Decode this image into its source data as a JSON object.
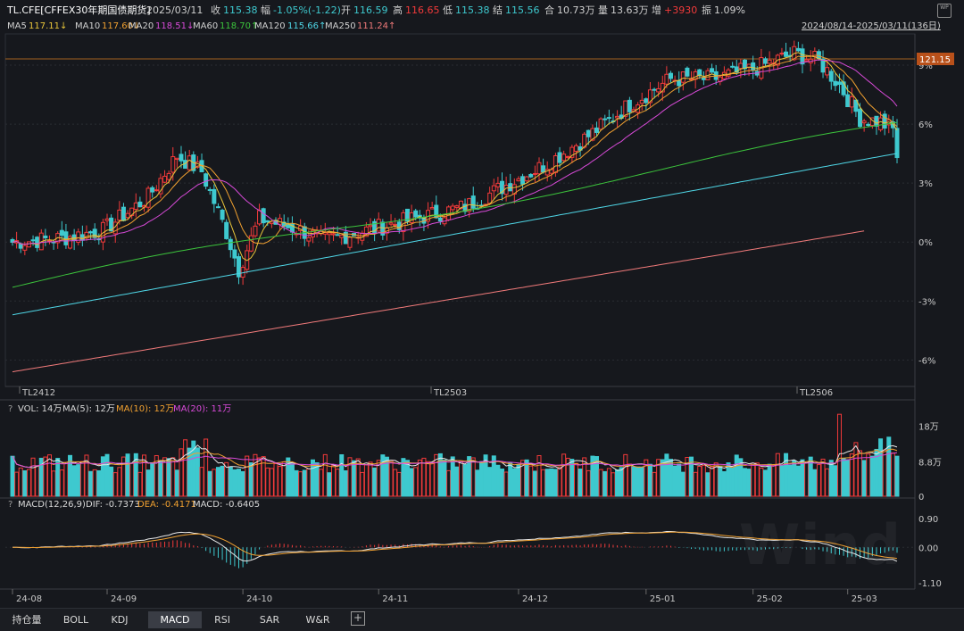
{
  "header": {
    "symbol": "TL.CFE[CFFEX30年期国债期货]",
    "date": "2025/03/11",
    "close_label": "收",
    "close": "115.38",
    "change_label": "幅",
    "change": "-1.05%(-1.22)",
    "open_label": "开",
    "open": "116.59",
    "high_label": "高",
    "high": "116.65",
    "low_label": "低",
    "low": "115.38",
    "settle_label": "结",
    "settle": "115.56",
    "oi_label": "合",
    "oi": "10.73万",
    "vol_label": "量",
    "vol": "13.63万",
    "oi_chg_label": "增",
    "oi_chg": "+3930",
    "amp_label": "振",
    "amp": "1.09%",
    "range": "2024/08/14-2025/03/11(136日)",
    "wp_icon": "WP"
  },
  "ma_legend": [
    {
      "label": "MA5",
      "value": "117.11↓",
      "color": "#e8c53a"
    },
    {
      "label": "MA10",
      "value": "117.60↓",
      "color": "#f0a030"
    },
    {
      "label": "MA20",
      "value": "118.51↓",
      "color": "#d84ad8"
    },
    {
      "label": "MA60",
      "value": "118.70↑",
      "color": "#3cc43c"
    },
    {
      "label": "MA120",
      "value": "115.66↑",
      "color": "#4fd6e6"
    },
    {
      "label": "MA250",
      "value": "111.24↑",
      "color": "#f07a7a"
    }
  ],
  "vol_legend": {
    "q": "?",
    "vol": "VOL: 14万",
    "ma5": "MA(5): 12万",
    "ma10": "MA(10): 12万",
    "ma20": "MA(20): 11万"
  },
  "macd_legend": {
    "q": "?",
    "name": "MACD(12,26,9)",
    "dif": "DIF: -0.7373",
    "dea": "DEA: -0.4171",
    "macd": "MACD: -0.6405"
  },
  "tabs": [
    {
      "label": "持仓量",
      "active": false
    },
    {
      "label": "BOLL",
      "active": false
    },
    {
      "label": "KDJ",
      "active": false
    },
    {
      "label": "MACD",
      "active": true
    },
    {
      "label": "RSI",
      "active": false
    },
    {
      "label": "SAR",
      "active": false
    },
    {
      "label": "W&R",
      "active": false
    }
  ],
  "add_tab_icon": "plus-icon",
  "watermark": "Wind",
  "colors": {
    "up": "#f23a3a",
    "down": "#3ec9cf",
    "grid": "#2a2d33",
    "ref": "#d07a20"
  },
  "chart_data": {
    "type": "candlestick",
    "price_axis": {
      "ticks": [
        "9%",
        "6%",
        "3%",
        "0%",
        "-3%",
        "-6%"
      ],
      "values": [
        9,
        6,
        3,
        0,
        -3,
        -6
      ],
      "range": [
        -7.3,
        10.5
      ],
      "ref_line_value": "121.15"
    },
    "contract_labels": [
      "TL2412",
      "TL2503",
      "TL2506"
    ],
    "date_labels": [
      "24-08",
      "24-09",
      "24-10",
      "24-11",
      "24-12",
      "25-01",
      "25-02",
      "25-03"
    ],
    "date_label_index": [
      0,
      23,
      56,
      89,
      123,
      154,
      180,
      203
    ],
    "volume_axis": {
      "ticks": [
        "18万",
        "8.8万",
        "0"
      ],
      "values": [
        18,
        8.8,
        0
      ],
      "max": 21.5
    },
    "macd_axis": {
      "ticks": [
        "0.90",
        "0.00",
        "-1.10"
      ],
      "values": [
        0.9,
        0,
        -1.1
      ],
      "range": [
        -1.35,
        1.2
      ]
    },
    "ma_end_pct": {
      "MA120": 4.55,
      "MA250": 0.6
    }
  }
}
